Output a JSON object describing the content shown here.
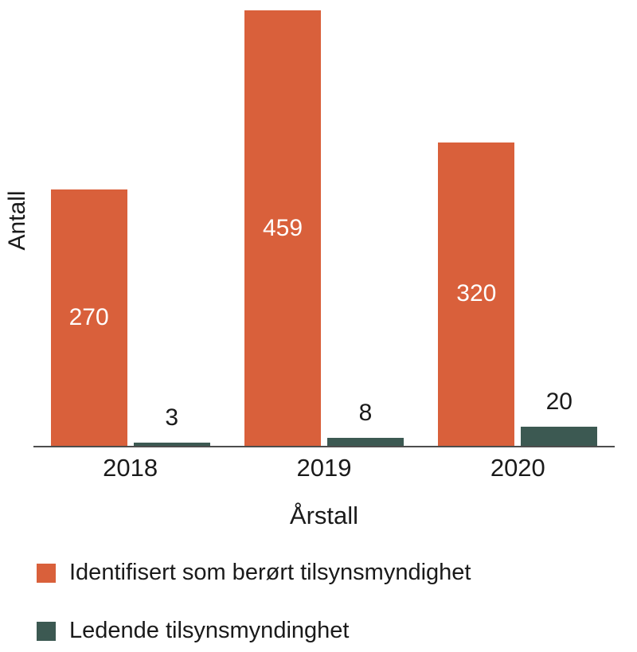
{
  "chart_data": {
    "type": "bar",
    "title": "",
    "categories": [
      "2018",
      "2019",
      "2020"
    ],
    "series": [
      {
        "name": "Identifisert som berørt tilsynsmyndighet",
        "color": "#d9603b",
        "values": [
          270,
          459,
          320
        ],
        "label_color": "#ffffff",
        "label_position": "inside-center"
      },
      {
        "name": "Ledende tilsynsmyndinghet",
        "color": "#3c5952",
        "values": [
          3,
          8,
          20
        ],
        "label_color": "#1a1a1a",
        "label_position": "above"
      }
    ],
    "xlabel": "Årstall",
    "ylabel": "Antall",
    "ylim": [
      0,
      470
    ],
    "grid": false,
    "legend_position": "bottom-left",
    "axis_color": "#4d4d4d",
    "text_color": "#1a1a1a",
    "background": "#ffffff"
  }
}
